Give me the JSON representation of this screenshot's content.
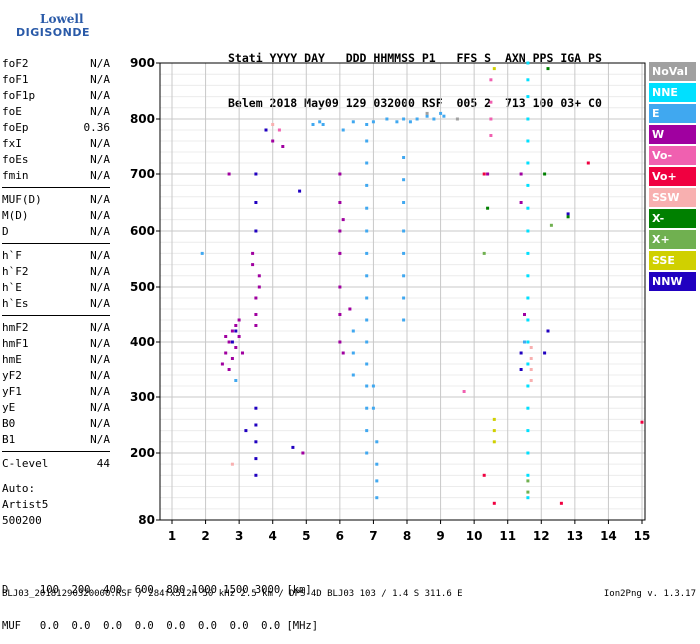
{
  "logo": {
    "line1": "Lowell",
    "line2": "DIGISONDE"
  },
  "header": {
    "line1": "Stati YYYY DAY   DDD HHMMSS P1   FFS S  AXN PPS IGA PS",
    "line2": "Belem 2018 May09 129 032000 RSF  005 2  713 100 03+ C0"
  },
  "params": [
    [
      [
        "foF2",
        "N/A"
      ],
      [
        "foF1",
        "N/A"
      ],
      [
        "foF1p",
        "N/A"
      ],
      [
        "foE",
        "N/A"
      ],
      [
        "foEp",
        "0.36"
      ],
      [
        "fxI",
        "N/A"
      ],
      [
        "foEs",
        "N/A"
      ],
      [
        "fmin",
        "N/A"
      ]
    ],
    [
      [
        "MUF(D)",
        "N/A"
      ],
      [
        "M(D)",
        "N/A"
      ],
      [
        "D",
        "N/A"
      ]
    ],
    [
      [
        "h`F",
        "N/A"
      ],
      [
        "h`F2",
        "N/A"
      ],
      [
        "h`E",
        "N/A"
      ],
      [
        "h`Es",
        "N/A"
      ]
    ],
    [
      [
        "hmF2",
        "N/A"
      ],
      [
        "hmF1",
        "N/A"
      ],
      [
        "hmE",
        "N/A"
      ],
      [
        "yF2",
        "N/A"
      ],
      [
        "yF1",
        "N/A"
      ],
      [
        "yE",
        "N/A"
      ],
      [
        "B0",
        "N/A"
      ],
      [
        "B1",
        "N/A"
      ]
    ],
    [
      [
        "C-level",
        "44"
      ]
    ]
  ],
  "auto": {
    "line1": "Auto:",
    "line2": "Artist5",
    "line3": "500200"
  },
  "muf_table": {
    "line1": "D     100  200  400  600  800 1000 1500 3000 [km]",
    "line2": "MUF   0.0  0.0  0.0  0.0  0.0  0.0  0.0  0.0 [MHz]"
  },
  "footer": {
    "left": "BLJ03_20181290320000.RSF / 284fx512h 50 kHz 2.5 km / DPS-4D BLJ03 103 / 1.4 S 311.6 E",
    "right": "Ion2Png v. 1.3.17"
  },
  "legend": [
    {
      "label": "NoVal",
      "color": "#a0a0a0"
    },
    {
      "label": "NNE",
      "color": "#00e0ff"
    },
    {
      "label": "E",
      "color": "#40a8f0"
    },
    {
      "label": "W",
      "color": "#a000a0"
    },
    {
      "label": "Vo-",
      "color": "#f060b0"
    },
    {
      "label": "Vo+",
      "color": "#f00040"
    },
    {
      "label": "SSW",
      "color": "#f8b0b0"
    },
    {
      "label": "X-",
      "color": "#008000"
    },
    {
      "label": "X+",
      "color": "#70b050"
    },
    {
      "label": "SSE",
      "color": "#d0d000"
    },
    {
      "label": "NNW",
      "color": "#2000c0"
    }
  ],
  "chart_data": {
    "type": "scatter",
    "title": "",
    "xlabel": "",
    "ylabel": "",
    "xlim": [
      1,
      15
    ],
    "ylim": [
      80,
      900
    ],
    "xticks": [
      "1",
      "2",
      "3",
      "4",
      "5",
      "6",
      "7",
      "8",
      "9",
      "10",
      "11",
      "12",
      "13",
      "14",
      "15"
    ],
    "yticks": [
      "80",
      "200",
      "300",
      "400",
      "500",
      "600",
      "700",
      "800",
      "900"
    ],
    "ytick_values": [
      80,
      200,
      300,
      400,
      500,
      600,
      700,
      800,
      900
    ],
    "grid": true,
    "series": [
      {
        "name": "W",
        "color": "#a000a0",
        "points": [
          [
            2.5,
            360
          ],
          [
            2.6,
            380
          ],
          [
            2.7,
            400
          ],
          [
            2.8,
            420
          ],
          [
            2.9,
            390
          ],
          [
            3.0,
            410
          ],
          [
            2.7,
            350
          ],
          [
            2.8,
            370
          ],
          [
            3.0,
            440
          ],
          [
            3.1,
            380
          ],
          [
            2.9,
            430
          ],
          [
            2.6,
            410
          ],
          [
            3.4,
            560
          ],
          [
            3.4,
            540
          ],
          [
            3.5,
            480
          ],
          [
            3.5,
            450
          ],
          [
            3.6,
            520
          ],
          [
            3.6,
            500
          ],
          [
            3.5,
            430
          ],
          [
            6.0,
            700
          ],
          [
            6.0,
            650
          ],
          [
            6.0,
            600
          ],
          [
            6.0,
            560
          ],
          [
            6.0,
            500
          ],
          [
            6.0,
            450
          ],
          [
            6.0,
            400
          ],
          [
            6.1,
            380
          ],
          [
            6.1,
            620
          ],
          [
            2.7,
            700
          ],
          [
            4.0,
            760
          ],
          [
            4.3,
            750
          ],
          [
            4.9,
            200
          ],
          [
            6.3,
            460
          ],
          [
            10.4,
            700
          ],
          [
            11.4,
            700
          ],
          [
            11.4,
            650
          ],
          [
            11.5,
            450
          ]
        ]
      },
      {
        "name": "NNW",
        "color": "#2000c0",
        "points": [
          [
            3.5,
            700
          ],
          [
            3.5,
            650
          ],
          [
            3.5,
            600
          ],
          [
            3.5,
            280
          ],
          [
            3.5,
            250
          ],
          [
            3.5,
            220
          ],
          [
            3.5,
            190
          ],
          [
            3.5,
            160
          ],
          [
            3.2,
            240
          ],
          [
            2.8,
            400
          ],
          [
            2.9,
            420
          ],
          [
            11.4,
            380
          ],
          [
            11.4,
            350
          ],
          [
            12.1,
            380
          ],
          [
            12.2,
            420
          ],
          [
            12.8,
            630
          ],
          [
            3.8,
            780
          ],
          [
            4.6,
            210
          ],
          [
            4.8,
            670
          ]
        ]
      },
      {
        "name": "E",
        "color": "#40a8f0",
        "points": [
          [
            5.2,
            790
          ],
          [
            5.4,
            795
          ],
          [
            5.5,
            790
          ],
          [
            6.1,
            780
          ],
          [
            6.4,
            795
          ],
          [
            6.8,
            790
          ],
          [
            7.0,
            795
          ],
          [
            7.4,
            800
          ],
          [
            7.7,
            795
          ],
          [
            7.9,
            800
          ],
          [
            8.1,
            795
          ],
          [
            8.3,
            800
          ],
          [
            8.6,
            805
          ],
          [
            8.8,
            800
          ],
          [
            9.0,
            810
          ],
          [
            9.1,
            805
          ],
          [
            6.8,
            760
          ],
          [
            6.8,
            720
          ],
          [
            6.8,
            680
          ],
          [
            6.8,
            640
          ],
          [
            6.8,
            600
          ],
          [
            6.8,
            560
          ],
          [
            6.8,
            520
          ],
          [
            6.8,
            480
          ],
          [
            6.8,
            440
          ],
          [
            6.8,
            400
          ],
          [
            6.8,
            360
          ],
          [
            6.8,
            320
          ],
          [
            6.8,
            280
          ],
          [
            6.8,
            240
          ],
          [
            6.8,
            200
          ],
          [
            7.1,
            220
          ],
          [
            7.1,
            180
          ],
          [
            7.1,
            150
          ],
          [
            7.1,
            120
          ],
          [
            7.9,
            730
          ],
          [
            7.9,
            690
          ],
          [
            7.9,
            650
          ],
          [
            7.9,
            600
          ],
          [
            7.9,
            560
          ],
          [
            7.9,
            520
          ],
          [
            7.9,
            480
          ],
          [
            7.9,
            440
          ],
          [
            6.4,
            420
          ],
          [
            6.4,
            380
          ],
          [
            6.4,
            340
          ],
          [
            7.0,
            320
          ],
          [
            7.0,
            280
          ],
          [
            2.9,
            330
          ],
          [
            1.9,
            560
          ],
          [
            11.5,
            400
          ]
        ]
      },
      {
        "name": "NNE",
        "color": "#00e0ff",
        "points": [
          [
            11.6,
            900
          ],
          [
            11.6,
            870
          ],
          [
            11.6,
            840
          ],
          [
            11.6,
            800
          ],
          [
            11.6,
            760
          ],
          [
            11.6,
            720
          ],
          [
            11.6,
            680
          ],
          [
            11.6,
            640
          ],
          [
            11.6,
            600
          ],
          [
            11.6,
            560
          ],
          [
            11.6,
            520
          ],
          [
            11.6,
            480
          ],
          [
            11.6,
            440
          ],
          [
            11.6,
            400
          ],
          [
            11.6,
            360
          ],
          [
            11.6,
            320
          ],
          [
            11.6,
            280
          ],
          [
            11.6,
            240
          ],
          [
            11.6,
            200
          ],
          [
            11.6,
            160
          ],
          [
            11.6,
            120
          ]
        ]
      },
      {
        "name": "SSW",
        "color": "#f8b0b0",
        "points": [
          [
            11.7,
            330
          ],
          [
            11.7,
            350
          ],
          [
            11.7,
            370
          ],
          [
            11.7,
            390
          ],
          [
            4.0,
            790
          ],
          [
            2.8,
            180
          ]
        ]
      },
      {
        "name": "Vo-",
        "color": "#f060b0",
        "points": [
          [
            10.5,
            870
          ],
          [
            10.5,
            830
          ],
          [
            10.5,
            800
          ],
          [
            10.5,
            770
          ],
          [
            4.2,
            780
          ],
          [
            9.7,
            310
          ]
        ]
      },
      {
        "name": "Vo+",
        "color": "#f00040",
        "points": [
          [
            10.3,
            700
          ],
          [
            10.6,
            110
          ],
          [
            10.3,
            160
          ],
          [
            13.4,
            720
          ],
          [
            12.6,
            110
          ],
          [
            15.0,
            255
          ]
        ]
      },
      {
        "name": "X-",
        "color": "#008000",
        "points": [
          [
            10.4,
            640
          ],
          [
            12.1,
            700
          ],
          [
            12.2,
            890
          ],
          [
            12.8,
            625
          ]
        ]
      },
      {
        "name": "X+",
        "color": "#70b050",
        "points": [
          [
            11.6,
            130
          ],
          [
            11.6,
            150
          ],
          [
            10.3,
            560
          ],
          [
            12.3,
            610
          ]
        ]
      },
      {
        "name": "SSE",
        "color": "#d0d000",
        "points": [
          [
            10.6,
            260
          ],
          [
            10.6,
            240
          ],
          [
            10.6,
            220
          ],
          [
            10.6,
            890
          ]
        ]
      },
      {
        "name": "NoVal",
        "color": "#a0a0a0",
        "points": [
          [
            9.5,
            800
          ],
          [
            8.6,
            810
          ]
        ]
      }
    ]
  }
}
